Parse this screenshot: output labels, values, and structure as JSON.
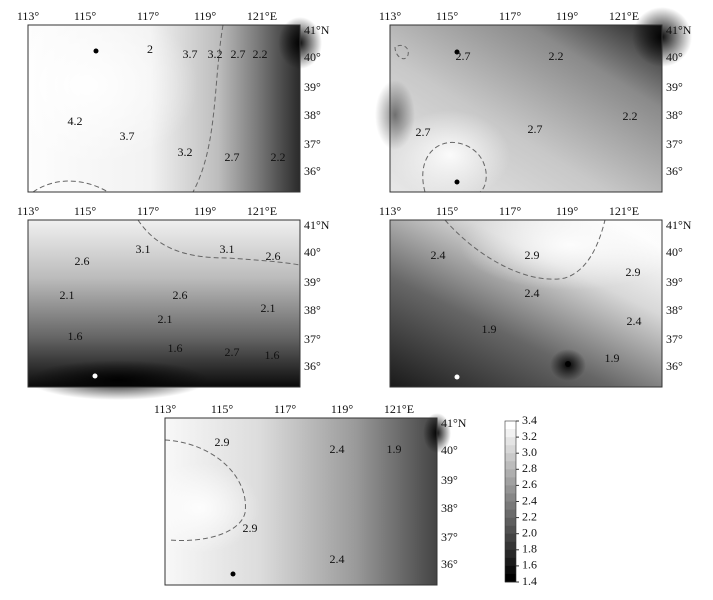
{
  "panels": [
    {
      "top_labels": [
        "113°",
        "115°",
        "117°",
        "119°",
        "121°E"
      ],
      "right_labels": [
        "41°N",
        "40°",
        "39°",
        "38°",
        "37°",
        "36°"
      ],
      "contour_labels": [
        "2",
        "3.7",
        "3.2",
        "2.7",
        "2.2",
        "4.2",
        "3.7",
        "3.2",
        "2.7",
        "2.2"
      ]
    },
    {
      "top_labels": [
        "113°",
        "115°",
        "117°",
        "119°",
        "121°E"
      ],
      "right_labels": [
        "41°N",
        "40°",
        "39°",
        "38°",
        "37°",
        "36°"
      ],
      "contour_labels": [
        "2.7",
        "2.2",
        "2.2",
        "2.7",
        "2.7"
      ]
    },
    {
      "top_labels": [
        "113°",
        "115°",
        "117°",
        "119°",
        "121°E"
      ],
      "right_labels": [
        "41°N",
        "40°",
        "39°",
        "38°",
        "37°",
        "36°"
      ],
      "contour_labels": [
        "3.1",
        "3.1",
        "2.6",
        "2.6",
        "2.6",
        "2.1",
        "2.1",
        "2.1",
        "1.6",
        "1.6",
        "2.7",
        "1.6"
      ]
    },
    {
      "top_labels": [
        "113°",
        "115°",
        "117°",
        "119°",
        "121°E"
      ],
      "right_labels": [
        "41°N",
        "40°",
        "39°",
        "38°",
        "37°",
        "36°"
      ],
      "contour_labels": [
        "2.4",
        "2.9",
        "2.9",
        "2.4",
        "2.4",
        "1.9",
        "1.9"
      ]
    },
    {
      "top_labels": [
        "113°",
        "115°",
        "117°",
        "119°",
        "121°E"
      ],
      "right_labels": [
        "41°N",
        "40°",
        "39°",
        "38°",
        "37°",
        "36°"
      ],
      "contour_labels": [
        "2.9",
        "2.4",
        "1.9",
        "2.9",
        "2.4"
      ]
    }
  ],
  "colorbar": {
    "ticks": [
      "3.4",
      "3.2",
      "3.0",
      "2.8",
      "2.6",
      "2.4",
      "2.2",
      "2.0",
      "1.8",
      "1.6",
      "1.4"
    ]
  }
}
